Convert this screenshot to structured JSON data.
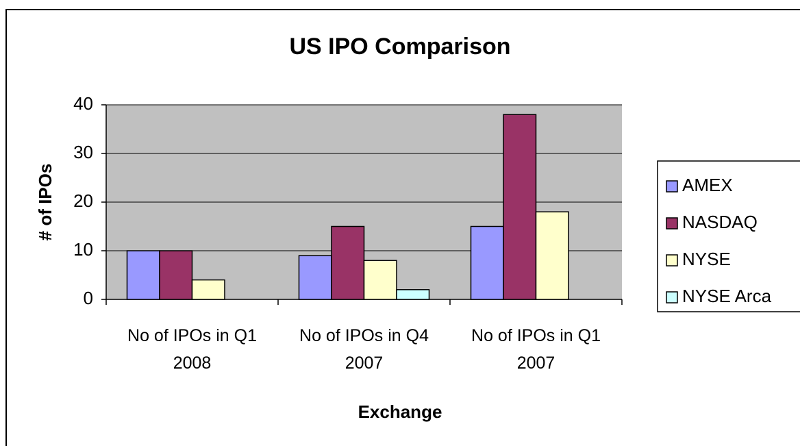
{
  "chart_data": {
    "type": "bar",
    "title": "US IPO Comparison",
    "x_label": "Exchange",
    "y_label": "# of IPOs",
    "categories": [
      "No of IPOs in Q1 2008",
      "No of IPOs in Q4 2007",
      "No of IPOs in Q1 2007"
    ],
    "series": [
      {
        "name": "AMEX",
        "color": "#9999ff",
        "values": [
          10,
          9,
          15
        ]
      },
      {
        "name": "NASDAQ",
        "color": "#993366",
        "values": [
          10,
          15,
          38
        ]
      },
      {
        "name": "NYSE",
        "color": "#ffffcc",
        "values": [
          4,
          8,
          18
        ]
      },
      {
        "name": "NYSE Arca",
        "color": "#ccffff",
        "values": [
          0,
          2,
          0
        ]
      }
    ],
    "ylim": [
      0,
      40
    ],
    "yticks": [
      0,
      10,
      20,
      30,
      40
    ],
    "grid": true,
    "legend": "right"
  }
}
